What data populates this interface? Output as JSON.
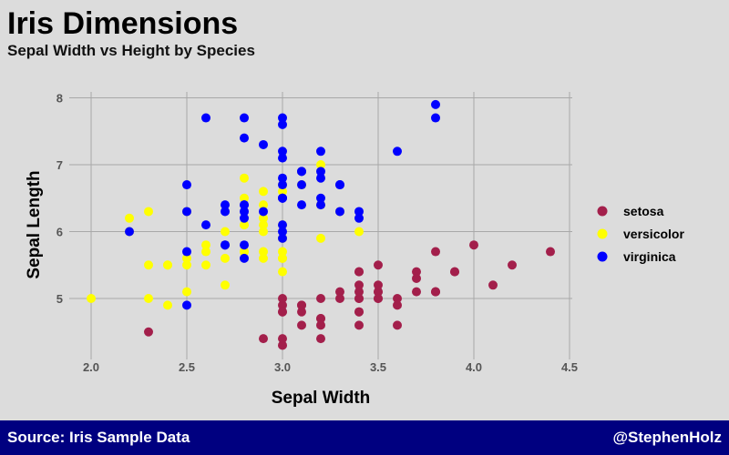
{
  "title": "Iris Dimensions",
  "subtitle": "Sepal Width vs Height by Species",
  "footer": {
    "source": "Source: Iris Sample Data",
    "handle": "@StephenHolz"
  },
  "chart_data": {
    "type": "scatter",
    "xlabel": "Sepal Width",
    "ylabel": "Sepal Length",
    "xlim": [
      2.0,
      4.5
    ],
    "ylim": [
      4.3,
      8.0
    ],
    "xticks": [
      "2.0",
      "2.5",
      "3.0",
      "3.5",
      "4.0",
      "4.5"
    ],
    "yticks": [
      "5",
      "6",
      "7",
      "8"
    ],
    "grid": true,
    "legend_position": "right",
    "series": [
      {
        "name": "setosa",
        "color": "#a31f4b",
        "points": [
          [
            3.5,
            5.1
          ],
          [
            3.0,
            4.9
          ],
          [
            3.2,
            4.7
          ],
          [
            3.1,
            4.6
          ],
          [
            3.6,
            5.0
          ],
          [
            3.9,
            5.4
          ],
          [
            3.4,
            4.6
          ],
          [
            3.4,
            5.0
          ],
          [
            2.9,
            4.4
          ],
          [
            3.1,
            4.9
          ],
          [
            3.7,
            5.4
          ],
          [
            3.4,
            4.8
          ],
          [
            3.0,
            4.8
          ],
          [
            3.0,
            4.3
          ],
          [
            4.0,
            5.8
          ],
          [
            4.4,
            5.7
          ],
          [
            3.9,
            5.4
          ],
          [
            3.5,
            5.1
          ],
          [
            3.8,
            5.7
          ],
          [
            3.8,
            5.1
          ],
          [
            3.4,
            5.4
          ],
          [
            3.7,
            5.1
          ],
          [
            3.6,
            4.6
          ],
          [
            3.3,
            5.1
          ],
          [
            3.4,
            4.8
          ],
          [
            3.0,
            5.0
          ],
          [
            3.4,
            5.0
          ],
          [
            3.5,
            5.2
          ],
          [
            3.4,
            5.2
          ],
          [
            3.2,
            4.7
          ],
          [
            3.1,
            4.8
          ],
          [
            3.4,
            5.4
          ],
          [
            4.1,
            5.2
          ],
          [
            4.2,
            5.5
          ],
          [
            3.1,
            4.9
          ],
          [
            3.2,
            5.0
          ],
          [
            3.5,
            5.5
          ],
          [
            3.6,
            4.9
          ],
          [
            3.0,
            4.4
          ],
          [
            3.4,
            5.1
          ],
          [
            3.5,
            5.0
          ],
          [
            2.3,
            4.5
          ],
          [
            3.2,
            4.4
          ],
          [
            3.5,
            5.0
          ],
          [
            3.8,
            5.1
          ],
          [
            3.0,
            4.8
          ],
          [
            3.8,
            5.1
          ],
          [
            3.2,
            4.6
          ],
          [
            3.7,
            5.3
          ],
          [
            3.3,
            5.0
          ]
        ]
      },
      {
        "name": "versicolor",
        "color": "#ffff00",
        "points": [
          [
            3.2,
            7.0
          ],
          [
            3.2,
            6.4
          ],
          [
            3.1,
            6.9
          ],
          [
            2.3,
            5.5
          ],
          [
            2.8,
            6.5
          ],
          [
            2.8,
            5.7
          ],
          [
            3.3,
            6.3
          ],
          [
            2.4,
            4.9
          ],
          [
            2.9,
            6.6
          ],
          [
            2.7,
            5.2
          ],
          [
            2.0,
            5.0
          ],
          [
            3.0,
            5.9
          ],
          [
            2.2,
            6.0
          ],
          [
            2.9,
            6.1
          ],
          [
            2.9,
            5.6
          ],
          [
            3.1,
            6.7
          ],
          [
            3.0,
            5.6
          ],
          [
            2.7,
            5.8
          ],
          [
            2.2,
            6.2
          ],
          [
            2.5,
            5.6
          ],
          [
            3.2,
            5.9
          ],
          [
            2.8,
            6.1
          ],
          [
            2.5,
            6.3
          ],
          [
            2.8,
            6.1
          ],
          [
            2.9,
            6.4
          ],
          [
            3.0,
            6.6
          ],
          [
            2.8,
            6.8
          ],
          [
            3.0,
            6.7
          ],
          [
            2.9,
            6.0
          ],
          [
            2.6,
            5.7
          ],
          [
            2.4,
            5.5
          ],
          [
            2.4,
            5.5
          ],
          [
            2.7,
            5.8
          ],
          [
            2.7,
            6.0
          ],
          [
            3.0,
            5.4
          ],
          [
            3.4,
            6.0
          ],
          [
            3.1,
            6.7
          ],
          [
            2.3,
            6.3
          ],
          [
            3.0,
            5.6
          ],
          [
            2.5,
            5.5
          ],
          [
            2.6,
            5.5
          ],
          [
            3.0,
            6.1
          ],
          [
            2.6,
            5.8
          ],
          [
            2.3,
            5.0
          ],
          [
            2.7,
            5.6
          ],
          [
            3.0,
            5.7
          ],
          [
            2.9,
            5.7
          ],
          [
            2.9,
            6.2
          ],
          [
            2.5,
            5.1
          ],
          [
            2.8,
            5.7
          ]
        ]
      },
      {
        "name": "virginica",
        "color": "#0000ff",
        "points": [
          [
            3.3,
            6.3
          ],
          [
            2.7,
            5.8
          ],
          [
            3.0,
            7.1
          ],
          [
            2.9,
            6.3
          ],
          [
            3.0,
            6.5
          ],
          [
            3.0,
            7.6
          ],
          [
            2.5,
            4.9
          ],
          [
            2.9,
            7.3
          ],
          [
            2.5,
            6.7
          ],
          [
            3.6,
            7.2
          ],
          [
            3.2,
            6.5
          ],
          [
            2.7,
            6.4
          ],
          [
            3.0,
            6.8
          ],
          [
            2.5,
            5.7
          ],
          [
            2.8,
            5.8
          ],
          [
            3.2,
            6.4
          ],
          [
            3.0,
            6.5
          ],
          [
            3.8,
            7.7
          ],
          [
            2.6,
            7.7
          ],
          [
            2.2,
            6.0
          ],
          [
            3.2,
            6.9
          ],
          [
            2.8,
            5.6
          ],
          [
            2.8,
            7.7
          ],
          [
            2.7,
            6.3
          ],
          [
            3.3,
            6.7
          ],
          [
            3.2,
            7.2
          ],
          [
            2.8,
            6.2
          ],
          [
            3.0,
            6.1
          ],
          [
            2.8,
            6.4
          ],
          [
            3.0,
            7.2
          ],
          [
            2.8,
            7.4
          ],
          [
            3.8,
            7.9
          ],
          [
            2.8,
            6.4
          ],
          [
            2.8,
            6.3
          ],
          [
            2.6,
            6.1
          ],
          [
            3.0,
            7.7
          ],
          [
            3.4,
            6.3
          ],
          [
            3.1,
            6.4
          ],
          [
            3.0,
            6.0
          ],
          [
            3.1,
            6.9
          ],
          [
            3.1,
            6.7
          ],
          [
            3.1,
            6.9
          ],
          [
            2.7,
            5.8
          ],
          [
            3.2,
            6.8
          ],
          [
            3.3,
            6.7
          ],
          [
            3.0,
            6.7
          ],
          [
            2.5,
            6.3
          ],
          [
            3.0,
            6.5
          ],
          [
            3.4,
            6.2
          ],
          [
            3.0,
            5.9
          ]
        ]
      }
    ]
  }
}
